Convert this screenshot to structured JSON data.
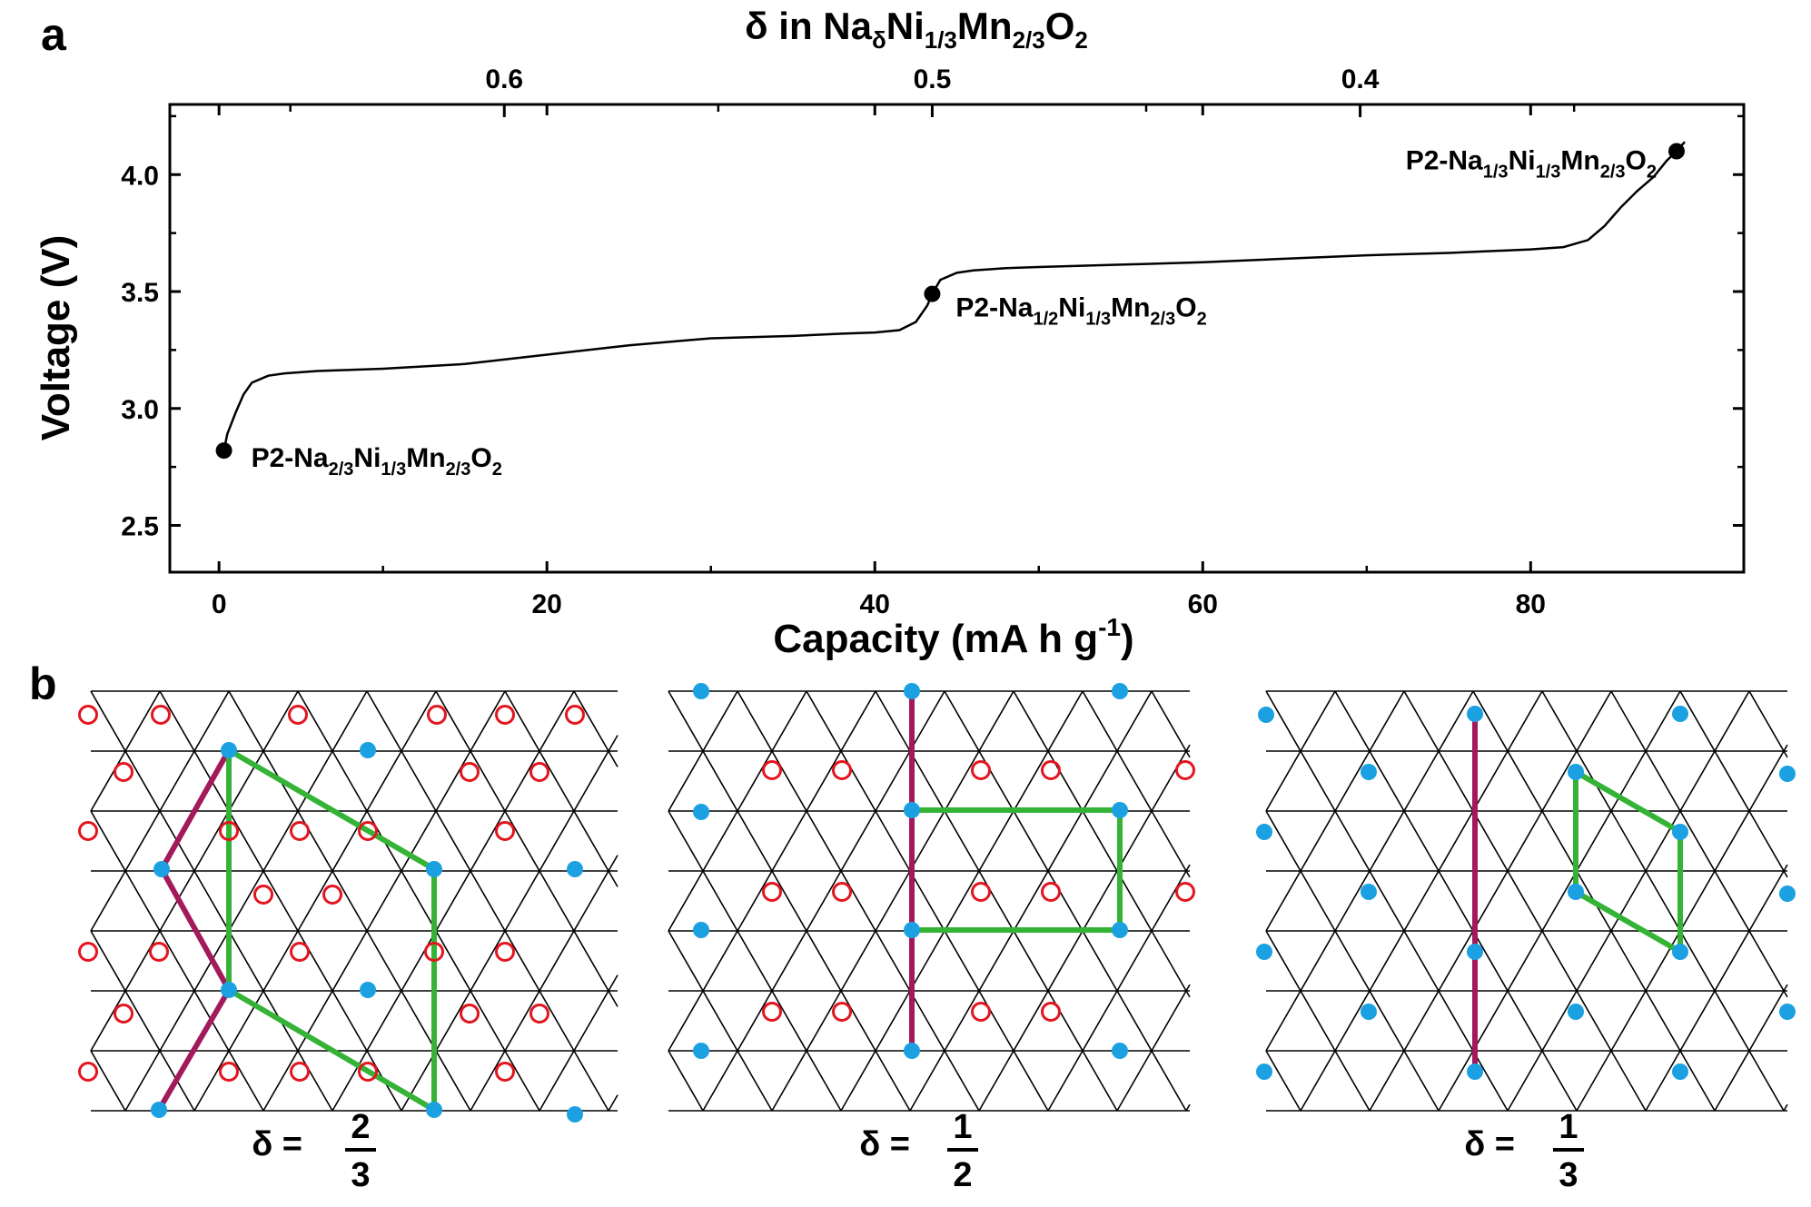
{
  "panel_a_label": "a",
  "panel_b_label": "b",
  "chart_data": {
    "type": "line",
    "top_axis": {
      "label_prefix": "δ in Na",
      "label_sub1": "δ",
      "label_mid1": "Ni",
      "label_sub2": "1/3",
      "label_mid2": "Mn",
      "label_sub3": "2/3",
      "label_mid3": "O",
      "label_sub4": "2",
      "ticks": [
        {
          "label": "0.6",
          "capacity": 17.4
        },
        {
          "label": "0.5",
          "capacity": 43.5
        },
        {
          "label": "0.4",
          "capacity": 69.6
        }
      ]
    },
    "xlabel_main": "Capacity (mA h g",
    "xlabel_sup": "-1",
    "xlabel_end": ")",
    "ylabel": "Voltage (V)",
    "xlim": [
      -3,
      93
    ],
    "ylim": [
      2.3,
      4.3
    ],
    "xticks": [
      0,
      20,
      40,
      60,
      80
    ],
    "yticks": [
      "2.5",
      "3.0",
      "3.5",
      "4.0"
    ],
    "series": [
      {
        "x": [
          0.3,
          0.5,
          1.0,
          1.5,
          2,
          3,
          4,
          6,
          8,
          10,
          15,
          20,
          25,
          30,
          35,
          38,
          40,
          41.5,
          42.5,
          43.2,
          43.5,
          44,
          45,
          46,
          48,
          50,
          55,
          60,
          65,
          70,
          75,
          80,
          82,
          83.5,
          84.5,
          85.5,
          86.5,
          87.5,
          88.3,
          88.9,
          89.4
        ],
        "y": [
          2.82,
          2.89,
          2.98,
          3.06,
          3.11,
          3.14,
          3.15,
          3.16,
          3.165,
          3.17,
          3.19,
          3.23,
          3.27,
          3.3,
          3.31,
          3.32,
          3.325,
          3.335,
          3.37,
          3.44,
          3.49,
          3.55,
          3.58,
          3.59,
          3.6,
          3.605,
          3.615,
          3.625,
          3.64,
          3.655,
          3.665,
          3.68,
          3.69,
          3.72,
          3.78,
          3.86,
          3.93,
          3.99,
          4.06,
          4.1,
          4.14
        ]
      }
    ],
    "points": [
      {
        "x": 0.3,
        "y": 2.82,
        "label_pre": "P2-Na",
        "s1": "2/3",
        "m1": "Ni",
        "s2": "1/3",
        "m2": "Mn",
        "s3": "2/3",
        "m3": "O",
        "s4": "2"
      },
      {
        "x": 43.5,
        "y": 3.49,
        "label_pre": "P2-Na",
        "s1": "1/2",
        "m1": "Ni",
        "s2": "1/3",
        "m2": "Mn",
        "s3": "2/3",
        "m3": "O",
        "s4": "2"
      },
      {
        "x": 88.9,
        "y": 4.1,
        "label_pre": "P2-Na",
        "s1": "1/3",
        "m1": "Ni",
        "s2": "1/3",
        "m2": "Mn",
        "s3": "2/3",
        "m3": "O",
        "s4": "2"
      }
    ]
  },
  "lattices": [
    {
      "delta_numerator": "2",
      "delta_denominator": "3",
      "delta_prefix": "δ ="
    },
    {
      "delta_numerator": "1",
      "delta_denominator": "2",
      "delta_prefix": "δ ="
    },
    {
      "delta_numerator": "1",
      "delta_denominator": "3",
      "delta_prefix": "δ ="
    }
  ],
  "colors": {
    "curve": "#000000",
    "filled_site": "#1ba1e2",
    "open_site": "#e3151e",
    "green_line": "#35b336",
    "purple_line": "#a3195b"
  }
}
